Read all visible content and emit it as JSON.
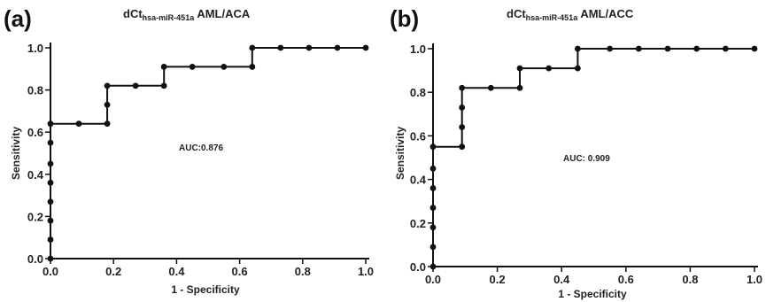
{
  "chart_data": [
    {
      "type": "line",
      "panel_label": "(a)",
      "title_main": "dCt",
      "title_sub": "hsa-miR-451a",
      "title_rest": " AML/ACA",
      "xlabel": "1 - Specificity",
      "ylabel": "Sensitivity",
      "annotation": "AUC:0.876",
      "xlim": [
        0.0,
        1.0
      ],
      "ylim": [
        0.0,
        1.0
      ],
      "xticks": [
        "0.0",
        "0.2",
        "0.4",
        "0.6",
        "0.8",
        "1.0"
      ],
      "yticks": [
        "0.0",
        "0.2",
        "0.4",
        "0.6",
        "0.8",
        "1.0"
      ],
      "grid": false,
      "points": [
        [
          0.0,
          0.0
        ],
        [
          0.0,
          0.09
        ],
        [
          0.0,
          0.18
        ],
        [
          0.0,
          0.27
        ],
        [
          0.0,
          0.36
        ],
        [
          0.0,
          0.45
        ],
        [
          0.0,
          0.55
        ],
        [
          0.0,
          0.64
        ],
        [
          0.09,
          0.64
        ],
        [
          0.18,
          0.64
        ],
        [
          0.18,
          0.73
        ],
        [
          0.18,
          0.82
        ],
        [
          0.27,
          0.82
        ],
        [
          0.36,
          0.82
        ],
        [
          0.36,
          0.91
        ],
        [
          0.45,
          0.91
        ],
        [
          0.55,
          0.91
        ],
        [
          0.64,
          0.91
        ],
        [
          0.64,
          1.0
        ],
        [
          0.73,
          1.0
        ],
        [
          0.82,
          1.0
        ],
        [
          0.91,
          1.0
        ],
        [
          1.0,
          1.0
        ]
      ]
    },
    {
      "type": "line",
      "panel_label": "(b)",
      "title_main": "dCt",
      "title_sub": "hsa-miR-451a",
      "title_rest": " AML/ACC",
      "xlabel": "1 - Specificity",
      "ylabel": "Sensitivity",
      "annotation": "AUC: 0.909",
      "xlim": [
        0.0,
        1.0
      ],
      "ylim": [
        0.0,
        1.0
      ],
      "xticks": [
        "0.0",
        "0.2",
        "0.4",
        "0.6",
        "0.8",
        "1.0"
      ],
      "yticks": [
        "0.0",
        "0.2",
        "0.4",
        "0.6",
        "0.8",
        "1.0"
      ],
      "grid": false,
      "points": [
        [
          0.0,
          0.0
        ],
        [
          0.0,
          0.09
        ],
        [
          0.0,
          0.18
        ],
        [
          0.0,
          0.27
        ],
        [
          0.0,
          0.36
        ],
        [
          0.0,
          0.45
        ],
        [
          0.0,
          0.55
        ],
        [
          0.09,
          0.55
        ],
        [
          0.09,
          0.64
        ],
        [
          0.09,
          0.73
        ],
        [
          0.09,
          0.82
        ],
        [
          0.18,
          0.82
        ],
        [
          0.27,
          0.82
        ],
        [
          0.27,
          0.91
        ],
        [
          0.36,
          0.91
        ],
        [
          0.45,
          0.91
        ],
        [
          0.45,
          1.0
        ],
        [
          0.55,
          1.0
        ],
        [
          0.64,
          1.0
        ],
        [
          0.73,
          1.0
        ],
        [
          0.82,
          1.0
        ],
        [
          0.91,
          1.0
        ],
        [
          1.0,
          1.0
        ]
      ]
    }
  ]
}
